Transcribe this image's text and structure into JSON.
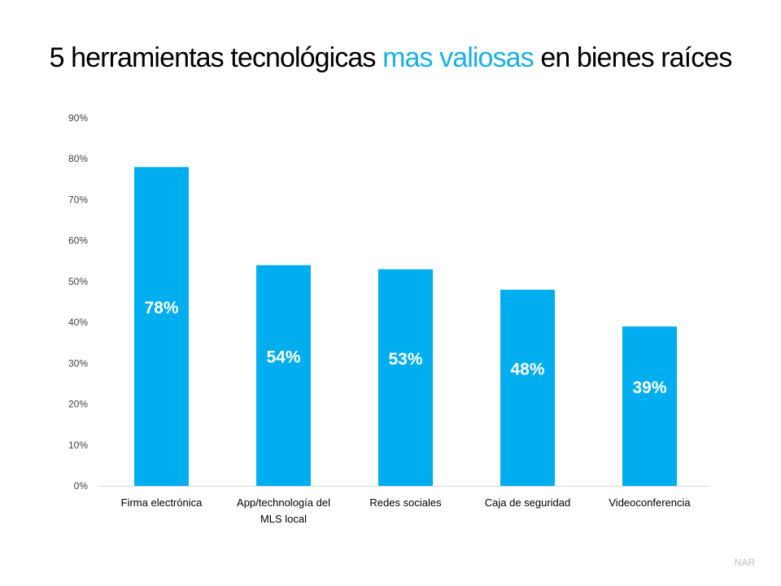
{
  "title": {
    "part1": "5 herramientas tecnológicas ",
    "highlight": "mas valiosas",
    "part2": " en bienes raíces"
  },
  "colors": {
    "bar": "#00aeef",
    "title_accent": "#1ab0e6",
    "axis_text": "#404040"
  },
  "source": "NAR",
  "chart_data": {
    "type": "bar",
    "title": "5 herramientas tecnológicas mas valiosas en bienes raíces",
    "categories": [
      "Firma electrónica",
      "App/technología del MLS local",
      "Redes sociales",
      "Caja de seguridad",
      "Videoconferencia"
    ],
    "category_lines": [
      [
        "Firma electrónica"
      ],
      [
        "App/technología del",
        "MLS local"
      ],
      [
        "Redes sociales"
      ],
      [
        "Caja de seguridad"
      ],
      [
        "Videoconferencia"
      ]
    ],
    "values": [
      78,
      54,
      53,
      48,
      39
    ],
    "data_labels": [
      "78%",
      "54%",
      "53%",
      "48%",
      "39%"
    ],
    "yticks": [
      "0%",
      "10%",
      "20%",
      "30%",
      "40%",
      "50%",
      "60%",
      "70%",
      "80%",
      "90%"
    ],
    "ylim": [
      0,
      90
    ],
    "grid": false,
    "legend": "none"
  }
}
